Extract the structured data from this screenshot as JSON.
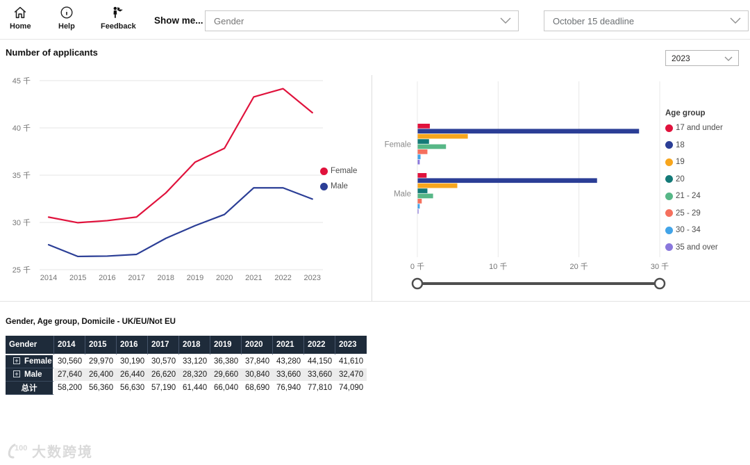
{
  "topbar": {
    "home_label": "Home",
    "help_label": "Help",
    "feedback_label": "Feedback",
    "show_me_label": "Show me...",
    "gender_slicer_value": "Gender",
    "deadline_slicer_value": "October 15 deadline"
  },
  "page_title": "Number of applicants",
  "year_dropdown_value": "2023",
  "colors": {
    "female": "#e0123c",
    "male": "#2b3e96",
    "table_header_bg": "#1e2b3a",
    "alt_row_bg": "#ececec",
    "gridline": "#e6e6e6",
    "slider": "#4e4e4e"
  },
  "chart_data": [
    {
      "type": "line",
      "title": "Number of applicants",
      "x": [
        "2014",
        "2015",
        "2016",
        "2017",
        "2018",
        "2019",
        "2020",
        "2021",
        "2022",
        "2023"
      ],
      "series": [
        {
          "name": "Female",
          "color": "#e0123c",
          "values": [
            30.56,
            29.97,
            30.19,
            30.57,
            33.12,
            36.38,
            37.84,
            43.28,
            44.15,
            41.61
          ]
        },
        {
          "name": "Male",
          "color": "#2b3e96",
          "values": [
            27.64,
            26.4,
            26.44,
            26.62,
            28.32,
            29.66,
            30.84,
            33.66,
            33.66,
            32.47
          ]
        }
      ],
      "unit": "千",
      "yticks": [
        25,
        30,
        35,
        40,
        45
      ],
      "yticks_labels": [
        "25 千",
        "30 千",
        "35 千",
        "40 千",
        "45 千"
      ],
      "ylim": [
        25,
        45
      ],
      "grid": true,
      "legend_position": "right"
    },
    {
      "type": "bar",
      "orientation": "horizontal",
      "categories": [
        "Female",
        "Male"
      ],
      "legend_title": "Age group",
      "series": [
        {
          "name": "17 and under",
          "color": "#e0123c",
          "values": [
            1.5,
            1.1
          ]
        },
        {
          "name": "18",
          "color": "#2b3e96",
          "values": [
            27.4,
            22.2
          ]
        },
        {
          "name": "19",
          "color": "#f8a61d",
          "values": [
            6.2,
            4.9
          ]
        },
        {
          "name": "20",
          "color": "#147a78",
          "values": [
            1.4,
            1.2
          ]
        },
        {
          "name": "21 - 24",
          "color": "#57b787",
          "values": [
            3.5,
            1.9
          ]
        },
        {
          "name": "25 - 29",
          "color": "#f5705e",
          "values": [
            1.2,
            0.5
          ]
        },
        {
          "name": "30 - 34",
          "color": "#42a4e8",
          "values": [
            0.35,
            0.25
          ]
        },
        {
          "name": "35 and over",
          "color": "#8a78dc",
          "values": [
            0.25,
            0.1
          ]
        }
      ],
      "xticks": [
        0,
        10,
        20,
        30
      ],
      "xticks_labels": [
        "0 千",
        "10 千",
        "20 千",
        "30 千"
      ],
      "xlim": [
        0,
        30
      ],
      "grid": true,
      "legend_position": "right",
      "range_slider": {
        "min_label": "0 千",
        "max_label": "30 千"
      }
    }
  ],
  "table": {
    "title": "Gender, Age group, Domicile - UK/EU/Not EU",
    "columns": [
      "Gender",
      "2014",
      "2015",
      "2016",
      "2017",
      "2018",
      "2019",
      "2020",
      "2021",
      "2022",
      "2023"
    ],
    "rows": [
      {
        "label": "Female",
        "expandable": true,
        "values": [
          "30,560",
          "29,970",
          "30,190",
          "30,570",
          "33,120",
          "36,380",
          "37,840",
          "43,280",
          "44,150",
          "41,610"
        ]
      },
      {
        "label": "Male",
        "expandable": true,
        "values": [
          "27,640",
          "26,400",
          "26,440",
          "26,620",
          "28,320",
          "29,660",
          "30,840",
          "33,660",
          "33,660",
          "32,470"
        ]
      },
      {
        "label": "总计",
        "expandable": false,
        "values": [
          "58,200",
          "56,360",
          "56,630",
          "57,190",
          "61,440",
          "66,040",
          "68,690",
          "76,940",
          "77,810",
          "74,090"
        ]
      }
    ]
  },
  "watermark": {
    "logo": "100",
    "text": "大数跨境"
  }
}
